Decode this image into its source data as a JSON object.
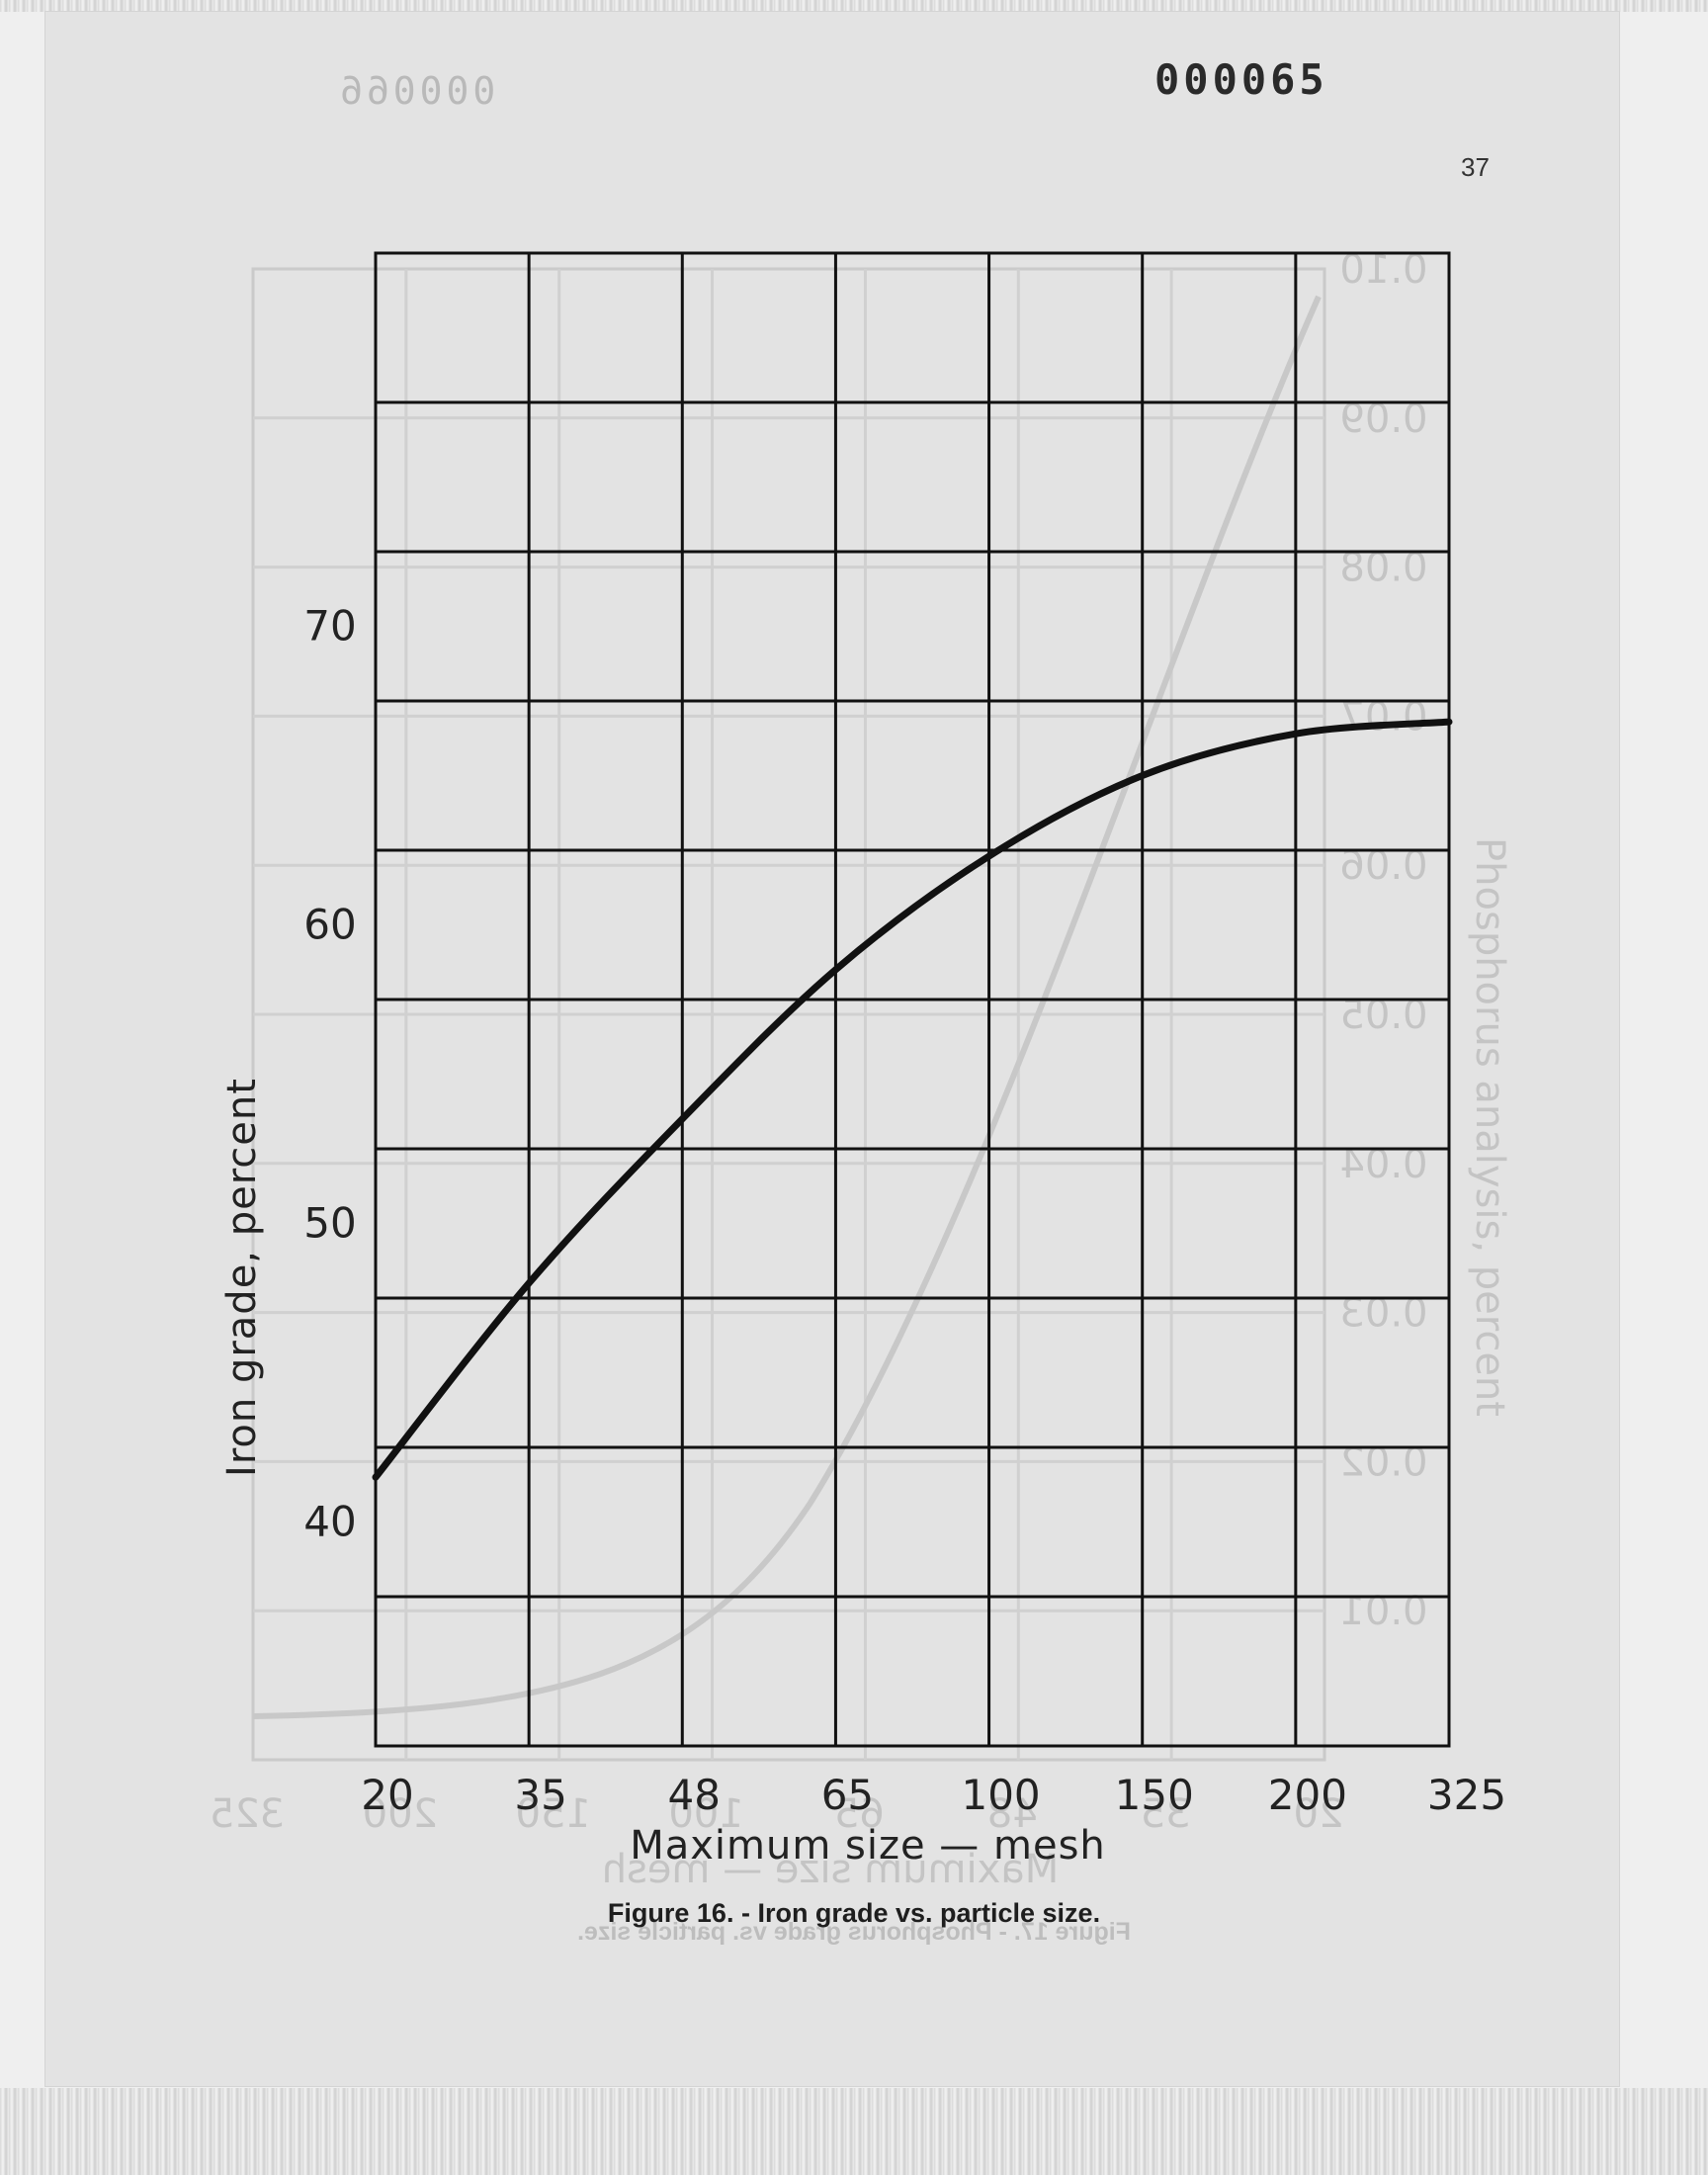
{
  "page": {
    "document_number": "000065",
    "ghost_number": "000066",
    "page_number": "37",
    "caption": "Figure 16. - Iron grade vs. particle size.",
    "ghost_caption": "Figure 17. - Phosphorus grade vs. particle size."
  },
  "chart_data": {
    "type": "line",
    "title": "",
    "xlabel": "Maximum size — mesh",
    "ylabel": "Iron grade, percent",
    "x_tick_labels": [
      "20",
      "35",
      "48",
      "65",
      "100",
      "150",
      "200",
      "325"
    ],
    "y_tick_labels": [
      "40",
      "50",
      "60",
      "70"
    ],
    "ylim": [
      32.5,
      82.5
    ],
    "grid": true,
    "series": [
      {
        "x": [
          "20",
          "35",
          "48",
          "65",
          "100",
          "150",
          "200",
          "325"
        ],
        "values": [
          41.5,
          48.0,
          53.5,
          58.5,
          62.3,
          65.0,
          66.4,
          66.8
        ]
      }
    ],
    "colors": {
      "line": "#111111",
      "grid": "#111111",
      "ghost": "#c8c8c8"
    }
  },
  "ghost_chart": {
    "ylabel": "Phosphorus analysis, percent",
    "xlabel": "Maximum size — mesh",
    "y_tick_labels": [
      "0.01",
      "0.02",
      "0.03",
      "0.04",
      "0.05",
      "0.06",
      "0.07",
      "0.08",
      "0.09",
      "0.10"
    ],
    "x_tick_labels": [
      "20",
      "35",
      "48",
      "65",
      "100",
      "150",
      "200",
      "325"
    ]
  }
}
